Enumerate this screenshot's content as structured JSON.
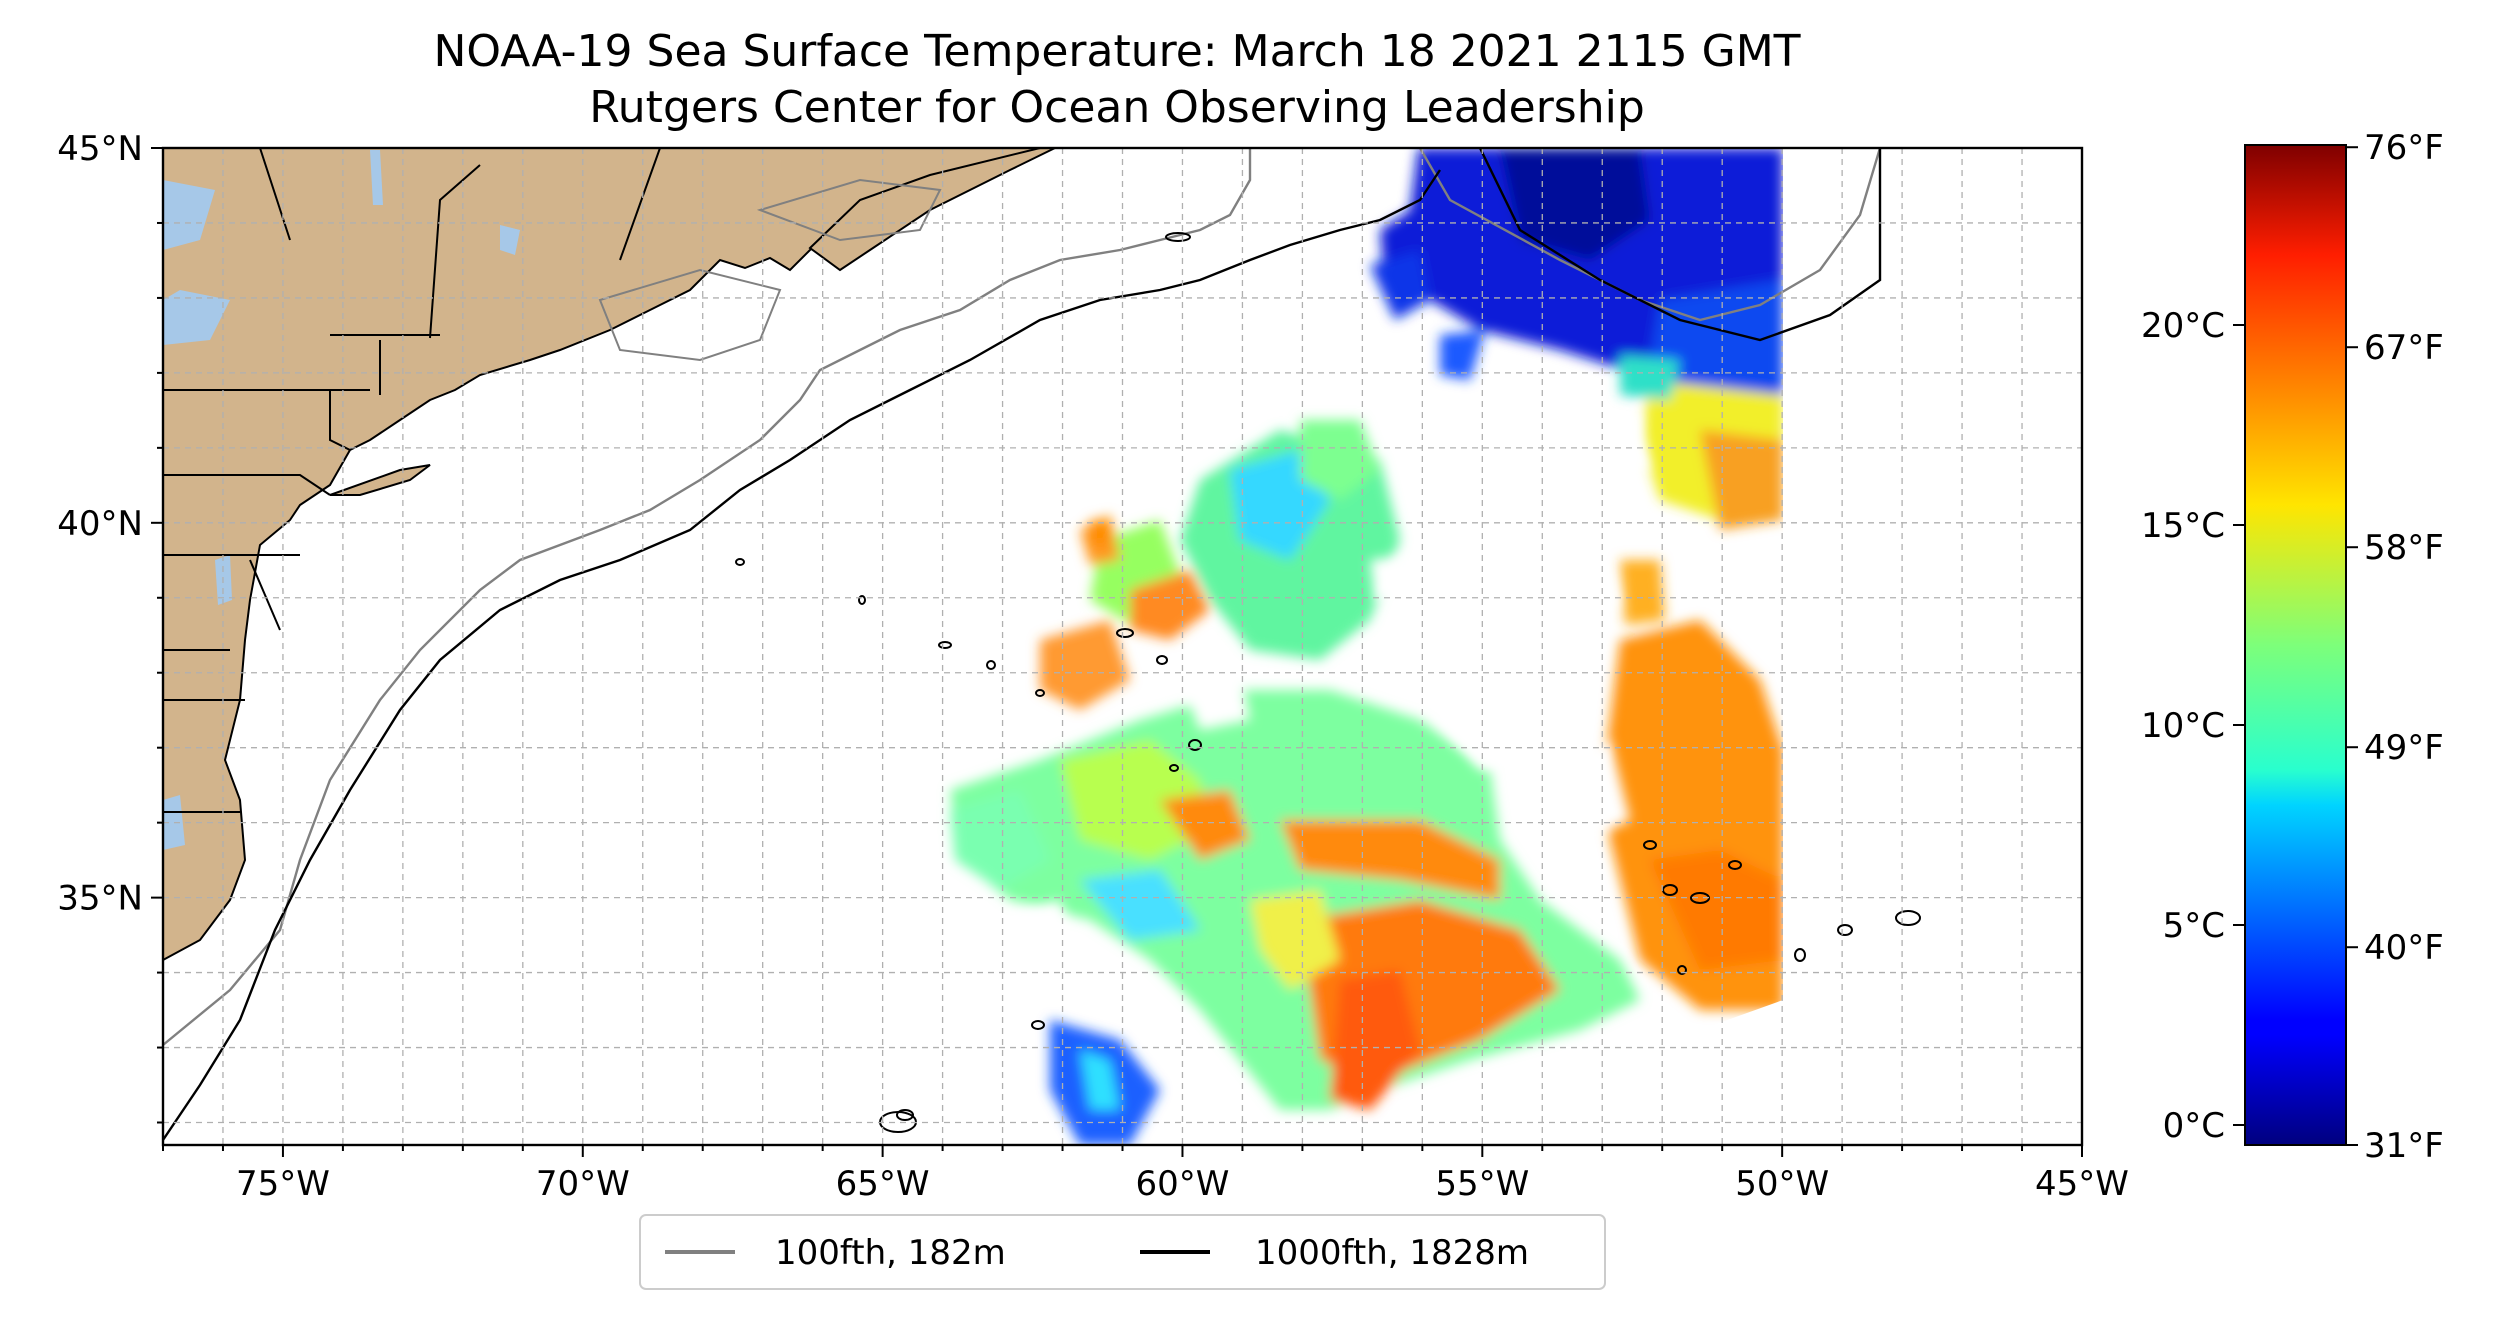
{
  "title": {
    "line1": "NOAA-19 Sea Surface Temperature: March 18 2021 2115 GMT",
    "line2": "Rutgers Center for Ocean Observing Leadership"
  },
  "map": {
    "lon_range": [
      -77,
      -45
    ],
    "lat_range": [
      31.7,
      45
    ],
    "lon_ticks": [
      {
        "value": -75,
        "label": "75°W"
      },
      {
        "value": -70,
        "label": "70°W"
      },
      {
        "value": -65,
        "label": "65°W"
      },
      {
        "value": -60,
        "label": "60°W"
      },
      {
        "value": -55,
        "label": "55°W"
      },
      {
        "value": -50,
        "label": "50°W"
      },
      {
        "value": -45,
        "label": "45°W"
      }
    ],
    "lat_ticks": [
      {
        "value": 45,
        "label": "45°N"
      },
      {
        "value": 40,
        "label": "40°N"
      },
      {
        "value": 35,
        "label": "35°N"
      }
    ],
    "gridlines": "on (dashed, 1° spacing)",
    "land_color": "#d2b48c",
    "lake_color": "#a6c8e8",
    "data_extent": {
      "west": -64.5,
      "east": -50,
      "north": 45,
      "south": 31.7
    }
  },
  "legend": {
    "placement": "bottom-center",
    "items": [
      {
        "label": "100fth, 182m",
        "color": "#808080"
      },
      {
        "label": "1000fth, 1828m",
        "color": "#000000"
      }
    ]
  },
  "colorbar": {
    "colormap": "jet",
    "celsius_range": [
      -0.5,
      24.5
    ],
    "celsius_ticks": [
      {
        "value": 0,
        "label": "0°C"
      },
      {
        "value": 5,
        "label": "5°C"
      },
      {
        "value": 10,
        "label": "10°C"
      },
      {
        "value": 15,
        "label": "15°C"
      },
      {
        "value": 20,
        "label": "20°C"
      }
    ],
    "fahrenheit_ticks": [
      {
        "value": 31,
        "label": "31°F"
      },
      {
        "value": 40,
        "label": "40°F"
      },
      {
        "value": 49,
        "label": "49°F"
      },
      {
        "value": 58,
        "label": "58°F"
      },
      {
        "value": 67,
        "label": "67°F"
      },
      {
        "value": 76,
        "label": "76°F"
      }
    ]
  }
}
